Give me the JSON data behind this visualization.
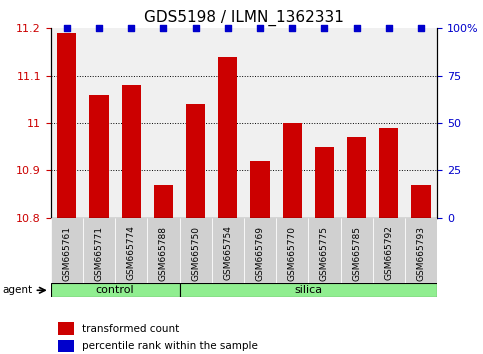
{
  "title": "GDS5198 / ILMN_1362331",
  "samples": [
    "GSM665761",
    "GSM665771",
    "GSM665774",
    "GSM665788",
    "GSM665750",
    "GSM665754",
    "GSM665769",
    "GSM665770",
    "GSM665775",
    "GSM665785",
    "GSM665792",
    "GSM665793"
  ],
  "transformed_counts": [
    11.19,
    11.06,
    11.08,
    10.87,
    11.04,
    11.14,
    10.92,
    11.0,
    10.95,
    10.97,
    10.99,
    10.87
  ],
  "percentile_ranks": [
    100,
    100,
    100,
    100,
    100,
    100,
    100,
    100,
    100,
    100,
    100,
    100
  ],
  "control_count": 4,
  "silica_count": 8,
  "ylim_left": [
    10.8,
    11.2
  ],
  "ylim_right": [
    0,
    100
  ],
  "bar_color": "#cc0000",
  "percentile_color": "#0000cc",
  "control_color": "#90ee90",
  "silica_color": "#90ee90",
  "agent_label": "agent",
  "legend_bar_label": "transformed count",
  "legend_pct_label": "percentile rank within the sample",
  "tick_label_color_left": "#cc0000",
  "tick_label_color_right": "#0000cc",
  "yticks_left": [
    10.8,
    10.9,
    11.0,
    11.1,
    11.2
  ],
  "ytick_labels_left": [
    "10.8",
    "10.9",
    "11",
    "11.1",
    "11.2"
  ],
  "yticks_right": [
    0,
    25,
    50,
    75,
    100
  ],
  "ytick_labels_right": [
    "0",
    "25",
    "50",
    "75",
    "100%"
  ],
  "grid_lines_at": [
    10.9,
    11.0,
    11.1
  ],
  "facecolor": "#f0f0f0",
  "tick_box_color": "#d0d0d0"
}
